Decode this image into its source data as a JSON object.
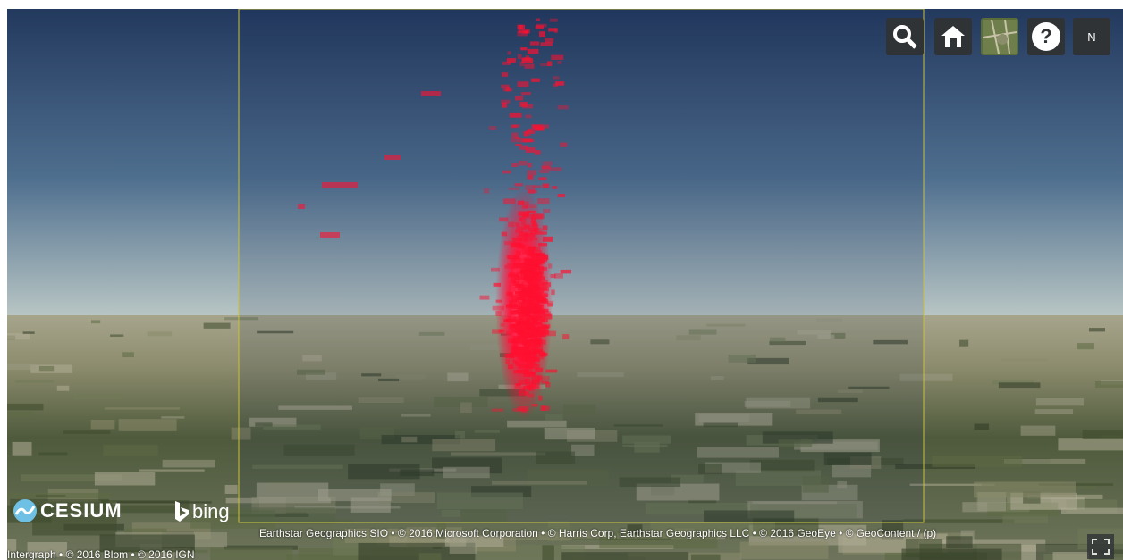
{
  "toolbar": {
    "help": "?",
    "north": "N"
  },
  "logos": {
    "cesium": "CESIUM",
    "bing": "bing"
  },
  "credits": {
    "imagery": "Earthstar Geographics SIO • © 2016 Microsoft Corporation • © Harris Corp, Earthstar Geographics LLC • © 2016 GeoEye • © GeoContent / (p)",
    "data": "Intergraph • © 2016 Blom • © 2016 IGN"
  }
}
